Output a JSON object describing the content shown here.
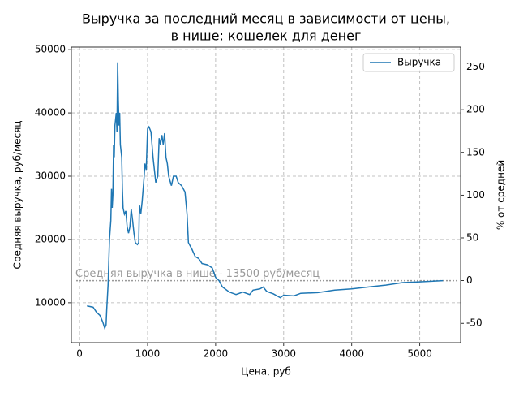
{
  "chart_data": {
    "type": "line",
    "title": [
      "Выручка за последний месяц в зависимости от цены,",
      "в нише: кошелек для денег"
    ],
    "xlabel": "Цена, руб",
    "ylabel": "Средняя выручка, руб/месяц",
    "y2label": "% от средней",
    "annotation": "Средняя выручка в нише - 13500 руб/месяц",
    "average": 13500,
    "average_color": "#999999",
    "xlim": [
      -120,
      5600
    ],
    "xticks": [
      0,
      1000,
      2000,
      3000,
      4000,
      5000
    ],
    "ylim": [
      3700,
      50400
    ],
    "yticks": [
      10000,
      20000,
      30000,
      40000,
      50000
    ],
    "y2lim": [
      -72.6,
      273.3
    ],
    "y2ticks": [
      -50,
      0,
      50,
      100,
      150,
      200,
      250
    ],
    "grid": true,
    "legend": "upper right",
    "series": [
      {
        "name": "Выручка",
        "color": "#1f77b4",
        "x": [
          110,
          200,
          250,
          300,
          340,
          370,
          390,
          400,
          420,
          440,
          460,
          470,
          480,
          490,
          500,
          510,
          520,
          540,
          550,
          560,
          570,
          580,
          590,
          600,
          620,
          630,
          640,
          660,
          680,
          700,
          720,
          740,
          760,
          780,
          800,
          820,
          850,
          870,
          880,
          900,
          920,
          950,
          960,
          980,
          1000,
          1020,
          1050,
          1080,
          1100,
          1120,
          1150,
          1170,
          1190,
          1210,
          1230,
          1250,
          1270,
          1290,
          1310,
          1350,
          1380,
          1420,
          1450,
          1500,
          1550,
          1580,
          1600,
          1650,
          1700,
          1750,
          1800,
          1880,
          1950,
          2000,
          2050,
          2100,
          2200,
          2300,
          2400,
          2500,
          2550,
          2650,
          2700,
          2750,
          2850,
          2950,
          3000,
          3150,
          3250,
          3500,
          3750,
          4000,
          4250,
          4500,
          4750,
          5000,
          5340
        ],
        "values": [
          9500,
          9300,
          8500,
          8000,
          7000,
          6000,
          6500,
          9000,
          13000,
          20000,
          23000,
          28000,
          25000,
          27000,
          35000,
          33000,
          38000,
          40000,
          37000,
          48000,
          42000,
          38000,
          40000,
          35000,
          33000,
          28000,
          25000,
          24000,
          24500,
          22000,
          21000,
          22000,
          24800,
          23000,
          21000,
          19500,
          19200,
          19500,
          25500,
          24000,
          26000,
          30000,
          32000,
          31000,
          37500,
          37800,
          37000,
          33000,
          31000,
          29000,
          30000,
          36000,
          35000,
          36500,
          35000,
          36800,
          33000,
          32000,
          30000,
          28500,
          30000,
          30000,
          29000,
          28500,
          27500,
          24000,
          19500,
          18500,
          17300,
          17000,
          16200,
          16000,
          15500,
          14000,
          13500,
          12500,
          11700,
          11300,
          11700,
          11300,
          12000,
          12200,
          12500,
          11800,
          11400,
          10800,
          11200,
          11100,
          11500,
          11600,
          12000,
          12200,
          12500,
          12800,
          13200,
          13300,
          13500
        ]
      }
    ]
  }
}
